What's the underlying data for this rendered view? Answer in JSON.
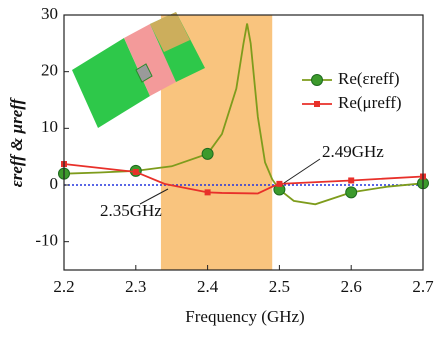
{
  "chart_data": {
    "type": "line",
    "xlabel": "Frequency (GHz)",
    "ylabel": "εreff & μreff",
    "xlim": [
      2.2,
      2.7
    ],
    "xticks": [
      2.2,
      2.3,
      2.4,
      2.5,
      2.6,
      2.7
    ],
    "ylim": [
      -15,
      30
    ],
    "yticks": [
      30,
      20,
      10,
      0,
      -10
    ],
    "band": [
      2.335,
      2.49
    ],
    "band_color": "#f9c47e",
    "zero_line_color": "#2233dd",
    "legend": "right",
    "series": [
      {
        "name": "Re(εreff)",
        "color": "#7e9c1c",
        "marker_color": "#3c9a2c",
        "x": [
          2.2,
          2.25,
          2.3,
          2.35,
          2.4,
          2.42,
          2.44,
          2.45,
          2.455,
          2.46,
          2.47,
          2.48,
          2.49,
          2.5,
          2.52,
          2.55,
          2.6,
          2.65,
          2.7
        ],
        "values": [
          2,
          2.2,
          2.5,
          3.3,
          5.5,
          9,
          17,
          25,
          28.5,
          25,
          12,
          4,
          1,
          -0.8,
          -2.8,
          -3.4,
          -1.3,
          -0.3,
          0.3
        ]
      },
      {
        "name": "Re(μreff)",
        "color": "#e8302a",
        "marker_color": "#e8302a",
        "x": [
          2.2,
          2.3,
          2.34,
          2.4,
          2.42,
          2.47,
          2.49,
          2.5,
          2.6,
          2.7
        ],
        "values": [
          3.7,
          2.3,
          0.2,
          -1.3,
          -1.4,
          -1.5,
          -0.3,
          0.2,
          0.8,
          1.5
        ]
      }
    ],
    "annotations": [
      "2.49GHz",
      "2.35GHz"
    ],
    "annotation_color": "#e020c0"
  }
}
